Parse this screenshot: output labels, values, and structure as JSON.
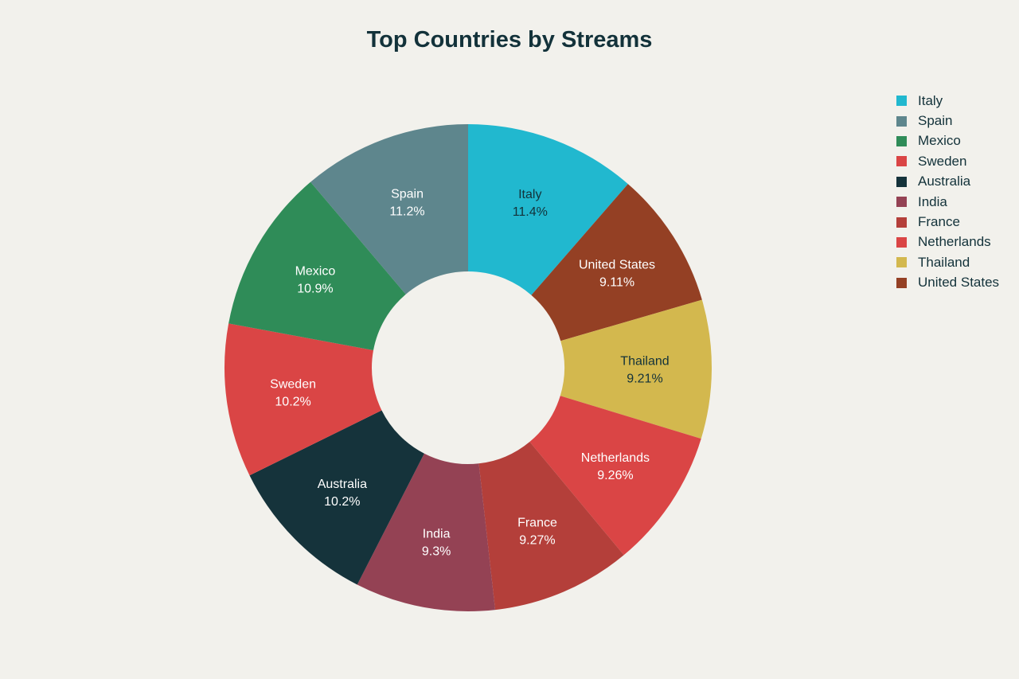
{
  "chart_data": {
    "type": "pie",
    "title": "Top Countries by Streams",
    "legend_position": "right",
    "slices": [
      {
        "label": "Italy",
        "value": 11.4,
        "display": "11.4%",
        "color": "#21b8cf",
        "text_color": "#13323a"
      },
      {
        "label": "United States",
        "value": 9.11,
        "display": "9.11%",
        "color": "#944024",
        "text_color": "#ffffff"
      },
      {
        "label": "Thailand",
        "value": 9.21,
        "display": "9.21%",
        "color": "#d3b84e",
        "text_color": "#13323a"
      },
      {
        "label": "Netherlands",
        "value": 9.26,
        "display": "9.26%",
        "color": "#da4545",
        "text_color": "#ffffff"
      },
      {
        "label": "France",
        "value": 9.27,
        "display": "9.27%",
        "color": "#b43f3a",
        "text_color": "#ffffff"
      },
      {
        "label": "India",
        "value": 9.3,
        "display": "9.3%",
        "color": "#944254",
        "text_color": "#ffffff"
      },
      {
        "label": "Australia",
        "value": 10.2,
        "display": "10.2%",
        "color": "#15333b",
        "text_color": "#ffffff"
      },
      {
        "label": "Sweden",
        "value": 10.2,
        "display": "10.2%",
        "color": "#da4545",
        "text_color": "#ffffff"
      },
      {
        "label": "Mexico",
        "value": 10.9,
        "display": "10.9%",
        "color": "#2f8c58",
        "text_color": "#ffffff"
      },
      {
        "label": "Spain",
        "value": 11.2,
        "display": "11.2%",
        "color": "#5e868d",
        "text_color": "#ffffff"
      }
    ],
    "legend": [
      {
        "label": "Italy",
        "color": "#21b8cf"
      },
      {
        "label": "Spain",
        "color": "#5e868d"
      },
      {
        "label": "Mexico",
        "color": "#2f8c58"
      },
      {
        "label": "Sweden",
        "color": "#da4545"
      },
      {
        "label": "Australia",
        "color": "#15333b"
      },
      {
        "label": "India",
        "color": "#944254"
      },
      {
        "label": "France",
        "color": "#b43f3a"
      },
      {
        "label": "Netherlands",
        "color": "#da4545"
      },
      {
        "label": "Thailand",
        "color": "#d3b84e"
      },
      {
        "label": "United States",
        "color": "#944024"
      }
    ]
  }
}
